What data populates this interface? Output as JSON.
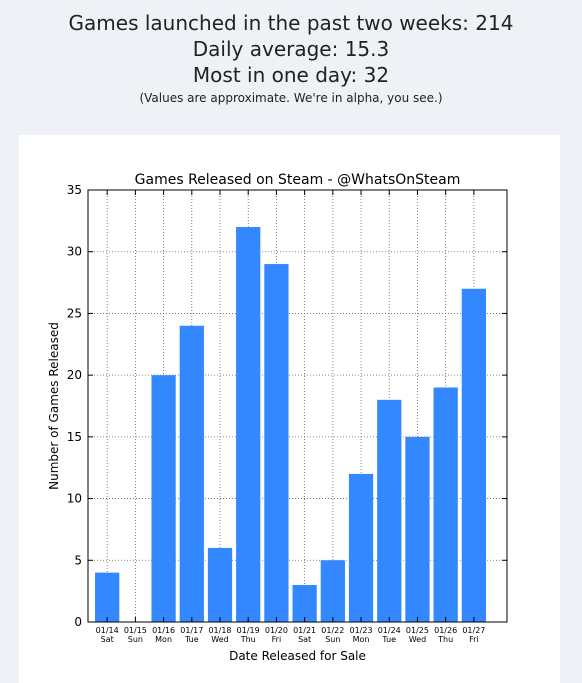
{
  "stats": {
    "launched": "Games launched in the past two weeks: 214",
    "average": "Daily average: 15.3",
    "most": "Most in one day: 32",
    "note": "(Values are approximate. We're in alpha, you see.)"
  },
  "chart_data": {
    "type": "bar",
    "title": "Games Released on Steam - @WhatsOnSteam",
    "xlabel": "Date Released for Sale",
    "ylabel": "Number of Games Released",
    "ylim": [
      0,
      35
    ],
    "yticks": [
      0,
      5,
      10,
      15,
      20,
      25,
      30,
      35
    ],
    "grid": true,
    "bar_color": "#3388ff",
    "categories": [
      {
        "date": "01/14",
        "day": "Sat"
      },
      {
        "date": "01/15",
        "day": "Sun"
      },
      {
        "date": "01/16",
        "day": "Mon"
      },
      {
        "date": "01/17",
        "day": "Tue"
      },
      {
        "date": "01/18",
        "day": "Wed"
      },
      {
        "date": "01/19",
        "day": "Thu"
      },
      {
        "date": "01/20",
        "day": "Fri"
      },
      {
        "date": "01/21",
        "day": "Sat"
      },
      {
        "date": "01/22",
        "day": "Sun"
      },
      {
        "date": "01/23",
        "day": "Mon"
      },
      {
        "date": "01/24",
        "day": "Tue"
      },
      {
        "date": "01/25",
        "day": "Wed"
      },
      {
        "date": "01/26",
        "day": "Thu"
      },
      {
        "date": "01/27",
        "day": "Fri"
      }
    ],
    "values": [
      4,
      0,
      20,
      24,
      6,
      32,
      29,
      3,
      5,
      12,
      18,
      15,
      19,
      27
    ]
  }
}
